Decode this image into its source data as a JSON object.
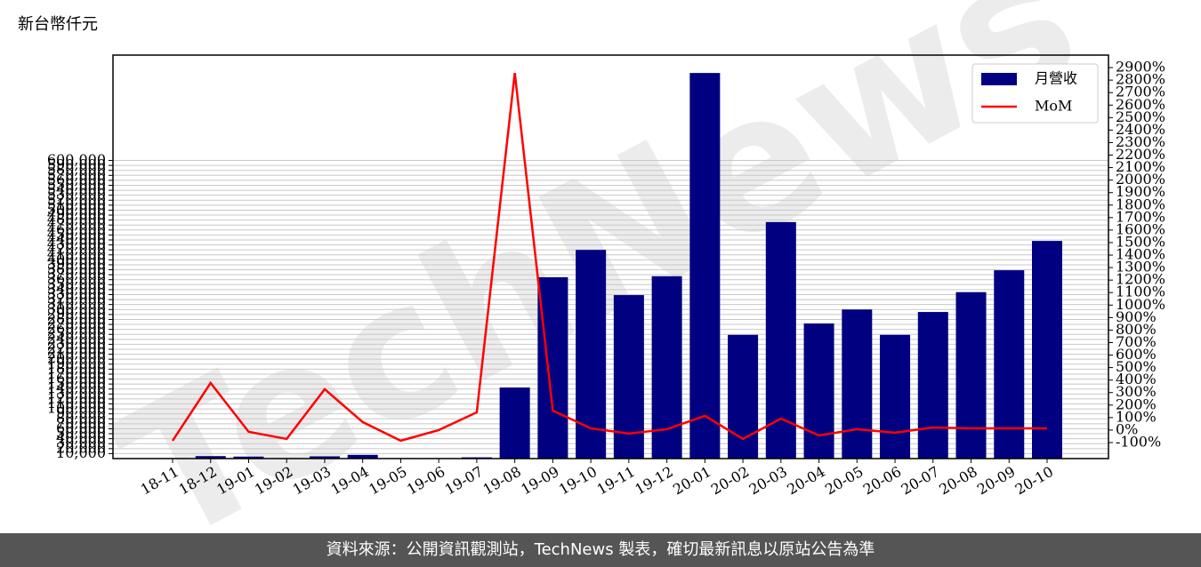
{
  "chart_data": {
    "type": "bar",
    "y_label": "新台幣仟元",
    "watermark": "TechNews",
    "footer": "資料來源：公開資訊觀測站，TechNews 製表，確切最新訊息以原站公告為準",
    "categories": [
      "18-11",
      "18-12",
      "19-01",
      "19-02",
      "19-03",
      "19-04",
      "19-05",
      "19-06",
      "19-07",
      "19-08",
      "19-09",
      "19-10",
      "19-11",
      "19-12",
      "20-01",
      "20-02",
      "20-03",
      "20-04",
      "20-05",
      "20-06",
      "20-07",
      "20-08",
      "20-09",
      "20-10"
    ],
    "series": [
      {
        "name": "月營收",
        "type": "bar",
        "color": "#000080",
        "values": [
          1000,
          5000,
          4000,
          1000,
          4500,
          7500,
          1000,
          1000,
          2500,
          143000,
          365000,
          420000,
          329000,
          367000,
          776000,
          249000,
          476000,
          272000,
          300000,
          249000,
          295000,
          335000,
          379000,
          438000
        ]
      },
      {
        "name": "MoM",
        "type": "line",
        "axis": "y2",
        "color": "#ff0000",
        "values": [
          -85,
          377,
          -14,
          -71,
          327,
          64,
          -85,
          0,
          142,
          2857,
          156,
          14,
          -28,
          7,
          114,
          -71,
          92,
          -43,
          7,
          -21,
          21,
          14,
          14,
          14
        ]
      }
    ],
    "ylim": [
      0,
      812000
    ],
    "y2lim": [
      -228,
      3000
    ],
    "grid": true,
    "legend": "upper-right",
    "yticks": [
      {
        "value": 10000,
        "label": "10,000"
      },
      {
        "value": 20000,
        "label": "20,000"
      },
      {
        "value": 30000,
        "label": "30,000"
      },
      {
        "value": 40000,
        "label": "40,000"
      },
      {
        "value": 50000,
        "label": "50,000"
      },
      {
        "value": 60000,
        "label": "60,000"
      },
      {
        "value": 70000,
        "label": "70,000"
      },
      {
        "value": 80000,
        "label": "80,000"
      },
      {
        "value": 90000,
        "label": "90,000"
      },
      {
        "value": 100000,
        "label": "100,000"
      },
      {
        "value": 110000,
        "label": "110,000"
      },
      {
        "value": 120000,
        "label": "120,000"
      },
      {
        "value": 130000,
        "label": "130,000"
      },
      {
        "value": 140000,
        "label": "140,000"
      },
      {
        "value": 150000,
        "label": "150,000"
      },
      {
        "value": 160000,
        "label": "160,000"
      },
      {
        "value": 170000,
        "label": "170,000"
      },
      {
        "value": 180000,
        "label": "180,000"
      },
      {
        "value": 190000,
        "label": "190,000"
      },
      {
        "value": 200000,
        "label": "200,000"
      },
      {
        "value": 210000,
        "label": "210,000"
      },
      {
        "value": 220000,
        "label": "220,000"
      },
      {
        "value": 230000,
        "label": "230,000"
      },
      {
        "value": 240000,
        "label": "240,000"
      },
      {
        "value": 250000,
        "label": "250,000"
      },
      {
        "value": 260000,
        "label": "260,000"
      },
      {
        "value": 270000,
        "label": "270,000"
      },
      {
        "value": 280000,
        "label": "280,000"
      },
      {
        "value": 290000,
        "label": "290,000"
      },
      {
        "value": 300000,
        "label": "300,000"
      },
      {
        "value": 310000,
        "label": "310,000"
      },
      {
        "value": 320000,
        "label": "320,000"
      },
      {
        "value": 330000,
        "label": "330,000"
      },
      {
        "value": 340000,
        "label": "340,000"
      },
      {
        "value": 350000,
        "label": "350,000"
      },
      {
        "value": 360000,
        "label": "360,000"
      },
      {
        "value": 370000,
        "label": "370,000"
      },
      {
        "value": 380000,
        "label": "380,000"
      },
      {
        "value": 390000,
        "label": "390,000"
      },
      {
        "value": 400000,
        "label": "400,000"
      },
      {
        "value": 410000,
        "label": "410,000"
      },
      {
        "value": 420000,
        "label": "420,000"
      },
      {
        "value": 430000,
        "label": "430,000"
      },
      {
        "value": 440000,
        "label": "440,000"
      },
      {
        "value": 450000,
        "label": "450,000"
      },
      {
        "value": 460000,
        "label": "460,000"
      },
      {
        "value": 470000,
        "label": "470,000"
      },
      {
        "value": 480000,
        "label": "480,000"
      },
      {
        "value": 490000,
        "label": "490,000"
      },
      {
        "value": 500000,
        "label": "500,000"
      },
      {
        "value": 510000,
        "label": "510,000"
      },
      {
        "value": 520000,
        "label": "520,000"
      },
      {
        "value": 530000,
        "label": "530,000"
      },
      {
        "value": 540000,
        "label": "540,000"
      },
      {
        "value": 550000,
        "label": "550,000"
      },
      {
        "value": 560000,
        "label": "560,000"
      },
      {
        "value": 570000,
        "label": "570,000"
      },
      {
        "value": 580000,
        "label": "580,000"
      },
      {
        "value": 590000,
        "label": "590,000"
      },
      {
        "value": 600000,
        "label": "600,000"
      }
    ],
    "y2ticks": [
      {
        "value": -100,
        "label": "-100%"
      },
      {
        "value": 0,
        "label": "0%"
      },
      {
        "value": 100,
        "label": "100%"
      },
      {
        "value": 200,
        "label": "200%"
      },
      {
        "value": 300,
        "label": "300%"
      },
      {
        "value": 400,
        "label": "400%"
      },
      {
        "value": 500,
        "label": "500%"
      },
      {
        "value": 600,
        "label": "600%"
      },
      {
        "value": 700,
        "label": "700%"
      },
      {
        "value": 800,
        "label": "800%"
      },
      {
        "value": 900,
        "label": "900%"
      },
      {
        "value": 1000,
        "label": "1000%"
      },
      {
        "value": 1100,
        "label": "1100%"
      },
      {
        "value": 1200,
        "label": "1200%"
      },
      {
        "value": 1300,
        "label": "1300%"
      },
      {
        "value": 1400,
        "label": "1400%"
      },
      {
        "value": 1500,
        "label": "1500%"
      },
      {
        "value": 1600,
        "label": "1600%"
      },
      {
        "value": 1700,
        "label": "1700%"
      },
      {
        "value": 1800,
        "label": "1800%"
      },
      {
        "value": 1900,
        "label": "1900%"
      },
      {
        "value": 2000,
        "label": "2000%"
      },
      {
        "value": 2100,
        "label": "2100%"
      },
      {
        "value": 2200,
        "label": "2200%"
      },
      {
        "value": 2300,
        "label": "2300%"
      },
      {
        "value": 2400,
        "label": "2400%"
      },
      {
        "value": 2500,
        "label": "2500%"
      },
      {
        "value": 2600,
        "label": "2600%"
      },
      {
        "value": 2700,
        "label": "2700%"
      },
      {
        "value": 2800,
        "label": "2800%"
      },
      {
        "value": 2900,
        "label": "2900%"
      }
    ]
  }
}
